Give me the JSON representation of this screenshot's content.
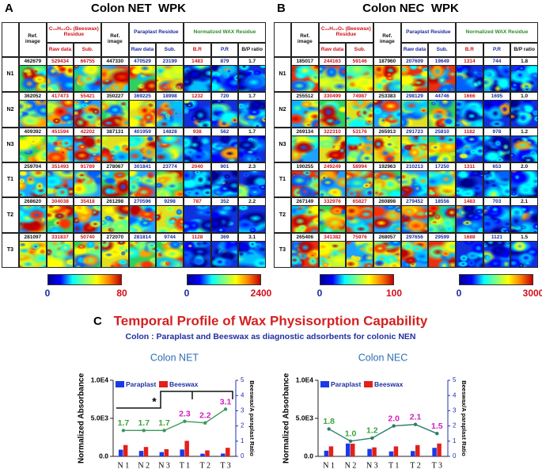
{
  "panels": [
    {
      "label": "A",
      "title": "Colon NET  WPK",
      "header": {
        "columns": [
          "Ref. image",
          "Raw data",
          "Sub.",
          "Ref. image",
          "Raw data",
          "Sub.",
          "B.R",
          "P.R",
          "B/P ratio"
        ],
        "groups": [
          "C₁₆H₃₂O₂ (Beeswax) Residue",
          "Paraplast Residue",
          "Normalized WAX Residue"
        ]
      },
      "rows": [
        {
          "label": "N1",
          "cells": [
            "462679",
            "529434",
            "66755",
            "447330",
            "470529",
            "23199",
            "1483",
            "879",
            "1.7"
          ]
        },
        {
          "label": "N2",
          "cells": [
            "362052",
            "417473",
            "55421",
            "350227",
            "369225",
            "18998",
            "1232",
            "720",
            "1.7"
          ]
        },
        {
          "label": "N3",
          "cells": [
            "409392",
            "451594",
            "42202",
            "387131",
            "401959",
            "14828",
            "938",
            "562",
            "1.7"
          ]
        },
        {
          "label": "T1",
          "cells": [
            "259704",
            "351493",
            "91789",
            "278067",
            "301841",
            "23774",
            "2040",
            "901",
            "2.3"
          ]
        },
        {
          "label": "T2",
          "cells": [
            "268620",
            "304038",
            "35418",
            "261298",
            "270596",
            "9298",
            "787",
            "352",
            "2.2"
          ]
        },
        {
          "label": "T3",
          "cells": [
            "281097",
            "331837",
            "50740",
            "272070",
            "281814",
            "9744",
            "1128",
            "369",
            "3.1"
          ]
        }
      ],
      "colorbars": [
        [
          0,
          80
        ],
        [
          0,
          2400
        ]
      ]
    },
    {
      "label": "B",
      "title": "Colon NEC  WPK",
      "header": {
        "columns": [
          "Ref. image",
          "Raw data",
          "Sub.",
          "Ref. image",
          "Raw data",
          "Sub.",
          "B.R",
          "P.R",
          "B/P ratio"
        ],
        "groups": [
          "C₁₆H₃₂O₂ (Beeswax) Residue",
          "Paraplast Residue",
          "Normalized WAX Residue"
        ]
      },
      "rows": [
        {
          "label": "N1",
          "cells": [
            "185017",
            "244163",
            "59146",
            "187960",
            "207609",
            "19649",
            "1314",
            "744",
            "1.8"
          ]
        },
        {
          "label": "N2",
          "cells": [
            "255512",
            "330499",
            "74987",
            "253383",
            "298129",
            "44746",
            "1666",
            "1695",
            "1.0"
          ]
        },
        {
          "label": "N3",
          "cells": [
            "269134",
            "322310",
            "53176",
            "265913",
            "291723",
            "25810",
            "1182",
            "978",
            "1.2"
          ]
        },
        {
          "label": "T1",
          "cells": [
            "190255",
            "249249",
            "58994",
            "192963",
            "210213",
            "17250",
            "1311",
            "653",
            "2.0"
          ]
        },
        {
          "label": "T2",
          "cells": [
            "267149",
            "332976",
            "65827",
            "260898",
            "279452",
            "18556",
            "1483",
            "703",
            "2.1"
          ]
        },
        {
          "label": "T3",
          "cells": [
            "265406",
            "341382",
            "75976",
            "268057",
            "297656",
            "29599",
            "1688",
            "1121",
            "1.5"
          ]
        }
      ],
      "colorbars": [
        [
          0,
          100
        ],
        [
          0,
          3000
        ]
      ]
    }
  ],
  "figure_c": {
    "label": "C",
    "title": "Temporal Profile of Wax Physisorption Capability",
    "subtitle": "Colon : Paraplast and Beeswax as diagnostic adsorbents for colonic NEN"
  },
  "chart_data": [
    {
      "type": "bar",
      "title": "Colon NET",
      "y_label": "Normalized Absorbance",
      "y2_label": "Beeswax/A paraplast Ratio",
      "annotation": "*",
      "categories": [
        "N 1",
        "N 2",
        "N 3",
        "T 1",
        "T 2",
        "T 3"
      ],
      "series": [
        {
          "name": "Paraplast",
          "color": "#1a3ae8",
          "values": [
            879,
            720,
            562,
            901,
            352,
            369
          ]
        },
        {
          "name": "Beeswax",
          "color": "#e3201b",
          "values": [
            1483,
            1232,
            938,
            2040,
            787,
            1128
          ]
        },
        {
          "type": "line",
          "axis": "y2",
          "color": "#3c9a5c",
          "values": [
            1.7,
            1.7,
            1.7,
            2.3,
            2.2,
            3.1
          ],
          "value_label_colors": [
            "#3aa53a",
            "#3aa53a",
            "#3aa53a",
            "#d21fc0",
            "#d21fc0",
            "#d21fc0"
          ]
        }
      ],
      "ylim": [
        0,
        10000
      ],
      "yticks": [
        {
          "value": 0,
          "label": "0.0"
        },
        {
          "value": 5000,
          "label": "5.0E3"
        },
        {
          "value": 10000,
          "label": "1.0E4"
        }
      ],
      "y2lim": [
        0,
        5
      ],
      "y2ticks": [
        0,
        1,
        2,
        3,
        4,
        5
      ],
      "legend": "top-left"
    },
    {
      "type": "bar",
      "title": "Colon NEC",
      "y_label": "Normalized Absorbance",
      "y2_label": "Beeswax/A paraplast Ratio",
      "categories": [
        "N 1",
        "N 2",
        "N 3",
        "T 1",
        "T 2",
        "T 3"
      ],
      "series": [
        {
          "name": "Paraplast",
          "color": "#1a3ae8",
          "values": [
            744,
            1695,
            978,
            653,
            703,
            1121
          ]
        },
        {
          "name": "Beeswax",
          "color": "#e3201b",
          "values": [
            1314,
            1666,
            1182,
            1311,
            1483,
            1688
          ]
        },
        {
          "type": "line",
          "axis": "y2",
          "color": "#2a7d6a",
          "values": [
            1.8,
            1.0,
            1.2,
            2.0,
            2.1,
            1.5
          ],
          "value_labels": [
            "1.8",
            "1.0",
            "1.2",
            "2.0",
            "2.1",
            "1.5"
          ],
          "value_label_colors": [
            "#3aa53a",
            "#3aa53a",
            "#3aa53a",
            "#d21fc0",
            "#d21fc0",
            "#d21fc0"
          ]
        }
      ],
      "ylim": [
        0,
        10000
      ],
      "yticks": [
        {
          "value": 0,
          "label": "0.0"
        },
        {
          "value": 5000,
          "label": "5.0E3"
        },
        {
          "value": 10000,
          "label": "1.0E4"
        }
      ],
      "y2lim": [
        0,
        5
      ],
      "y2ticks": [
        0,
        1,
        2,
        3,
        4,
        5
      ],
      "legend": "top-left"
    }
  ]
}
